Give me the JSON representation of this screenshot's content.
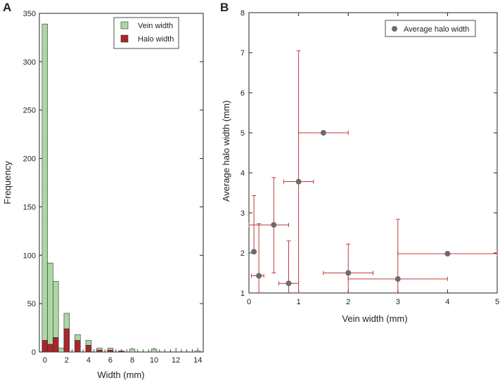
{
  "chart_data": [
    {
      "panel_label": "A",
      "type": "bar",
      "xlabel": "Width (mm)",
      "ylabel": "Frequency",
      "xlim": [
        -0.5,
        14.5
      ],
      "ylim": [
        0,
        350
      ],
      "xticks": [
        0,
        2,
        4,
        6,
        8,
        10,
        12,
        14
      ],
      "yticks": [
        0,
        50,
        100,
        150,
        200,
        250,
        300,
        350
      ],
      "bin_width": 0.5,
      "legend_position": "top-right",
      "series": [
        {
          "name": "Vein width",
          "color": "#bfe3b4",
          "pattern": "crosshatch",
          "bins": [
            {
              "x": 0,
              "value": 339
            },
            {
              "x": 0.5,
              "value": 92
            },
            {
              "x": 1,
              "value": 73
            },
            {
              "x": 1.5,
              "value": 4
            },
            {
              "x": 2,
              "value": 40
            },
            {
              "x": 3,
              "value": 18
            },
            {
              "x": 4,
              "value": 12
            },
            {
              "x": 5,
              "value": 4
            },
            {
              "x": 6,
              "value": 4
            },
            {
              "x": 7,
              "value": 1
            },
            {
              "x": 8,
              "value": 3
            },
            {
              "x": 10,
              "value": 3
            },
            {
              "x": 14,
              "value": 1
            }
          ]
        },
        {
          "name": "Halo width",
          "color": "#a8272b",
          "pattern": "solid",
          "bins": [
            {
              "x": 0,
              "value": 12
            },
            {
              "x": 0.5,
              "value": 8
            },
            {
              "x": 1,
              "value": 15
            },
            {
              "x": 2,
              "value": 24
            },
            {
              "x": 3,
              "value": 12
            },
            {
              "x": 4,
              "value": 7
            },
            {
              "x": 5,
              "value": 2
            },
            {
              "x": 6,
              "value": 2
            },
            {
              "x": 7,
              "value": 1
            }
          ]
        }
      ]
    },
    {
      "panel_label": "B",
      "type": "scatter",
      "xlabel": "Vein width (mm)",
      "ylabel": "Average halo width (mm)",
      "xlim": [
        0,
        5
      ],
      "ylim": [
        1,
        8
      ],
      "xticks": [
        0,
        1,
        2,
        3,
        4,
        5
      ],
      "yticks": [
        1,
        2,
        3,
        4,
        5,
        6,
        7,
        8
      ],
      "legend_position": "top-right",
      "series": [
        {
          "name": "Average halo width",
          "marker_color": "#6b6b6d",
          "errorbar_color": "#c0393b",
          "points": [
            {
              "x": 0.1,
              "y": 2.03,
              "xerr": [
                0.0,
                0.0
              ],
              "yerr": [
                2.03,
                3.43
              ]
            },
            {
              "x": 0.2,
              "y": 1.43,
              "xerr": [
                0.05,
                0.3
              ],
              "yerr": [
                1.0,
                2.73
              ]
            },
            {
              "x": 0.5,
              "y": 2.7,
              "xerr": [
                0.0,
                0.8
              ],
              "yerr": [
                1.5,
                3.88
              ]
            },
            {
              "x": 0.8,
              "y": 1.24,
              "xerr": [
                0.6,
                1.0
              ],
              "yerr": [
                1.0,
                2.3
              ]
            },
            {
              "x": 1.0,
              "y": 3.78,
              "xerr": [
                0.7,
                1.3
              ],
              "yerr": [
                1.0,
                7.05
              ]
            },
            {
              "x": 1.5,
              "y": 5.0,
              "xerr": [
                1.0,
                2.0
              ],
              "yerr": [
                5.0,
                5.0
              ]
            },
            {
              "x": 2.0,
              "y": 1.5,
              "xerr": [
                1.5,
                2.5
              ],
              "yerr": [
                1.0,
                2.22
              ]
            },
            {
              "x": 3.0,
              "y": 1.35,
              "xerr": [
                2.0,
                4.0
              ],
              "yerr": [
                1.0,
                2.84
              ]
            },
            {
              "x": 4.0,
              "y": 1.98,
              "xerr": [
                3.0,
                5.0
              ],
              "yerr": [
                1.98,
                1.98
              ]
            }
          ]
        }
      ]
    }
  ]
}
